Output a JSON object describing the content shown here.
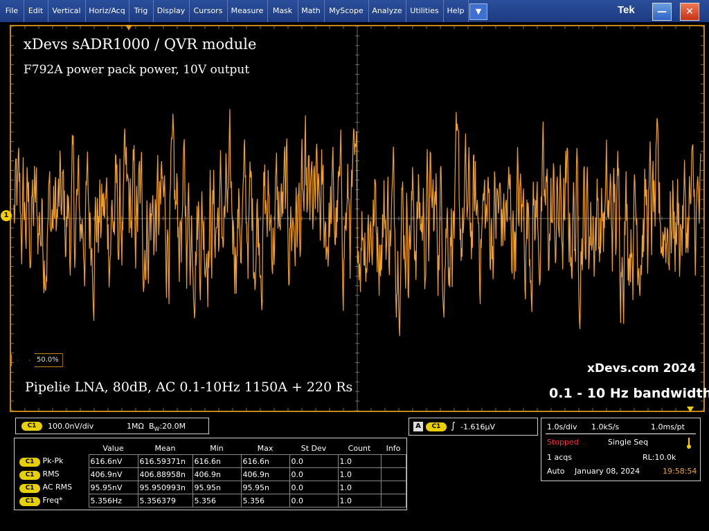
{
  "menu": {
    "items": [
      "File",
      "Edit",
      "Vertical",
      "Horiz/Acq",
      "Trig",
      "Display",
      "Cursors",
      "Measure",
      "Mask",
      "Math",
      "MyScope",
      "Analyze",
      "Utilities",
      "Help"
    ],
    "dropdown_glyph": "▼",
    "brand": "Tek",
    "minimize_glyph": "—",
    "close_glyph": "✕"
  },
  "screen": {
    "title": "xDevs sADR1000 / QVR module",
    "subtitle": "F792A power pack power, 10V output",
    "note": "Pipelie LNA, 80dB, AC 0.1-10Hz 1150A  + 220  Rs",
    "site": "xDevs.com 2024",
    "bandwidth": "0.1 - 10 Hz bandwidth",
    "channel_marker": "1",
    "trigger_level_pct": "50.0%"
  },
  "colors": {
    "trace": "#f0a030",
    "grid": "#6e6e6e",
    "channel": "#e8d000",
    "stopped": "#ff3030",
    "time": "#f0a030"
  },
  "channel": {
    "badge": "C1",
    "scale": "100.0nV/div",
    "impedance": "1MΩ",
    "bw_prefix": "B",
    "bw_sub": "W",
    "bw_value": ":20.0M"
  },
  "trigger": {
    "source_badge": "A",
    "channel_badge": "C1",
    "slope_glyph": "∫",
    "level": "-1.616µV"
  },
  "measurements": {
    "headers": [
      "Value",
      "Mean",
      "Min",
      "Max",
      "St Dev",
      "Count",
      "Info"
    ],
    "rows": [
      {
        "badge": "C1",
        "label": "Pk-Pk",
        "value": "616.6nV",
        "mean": "616.59371n",
        "min": "616.6n",
        "max": "616.6n",
        "stdev": "0.0",
        "count": "1.0",
        "info": ""
      },
      {
        "badge": "C1",
        "label": "RMS",
        "value": "406.9nV",
        "mean": "406.88958n",
        "min": "406.9n",
        "max": "406.9n",
        "stdev": "0.0",
        "count": "1.0",
        "info": ""
      },
      {
        "badge": "C1",
        "label": "AC RMS",
        "value": "95.95nV",
        "mean": "95.950993n",
        "min": "95.95n",
        "max": "95.95n",
        "stdev": "0.0",
        "count": "1.0",
        "info": ""
      },
      {
        "badge": "C1",
        "label": "Freq*",
        "value": "5.356Hz",
        "mean": "5.356379",
        "min": "5.356",
        "max": "5.356",
        "stdev": "0.0",
        "count": "1.0",
        "info": ""
      }
    ]
  },
  "acquisition": {
    "timebase": "1.0s/div",
    "sample_rate": "1.0kS/s",
    "resolution": "1.0ms/pt",
    "state": "Stopped",
    "mode": "Single Seq",
    "acqs": "1 acqs",
    "record_length": "RL:10.0k",
    "trigger_mode": "Auto",
    "date": "January 08, 2024",
    "time": "19:58:54"
  }
}
